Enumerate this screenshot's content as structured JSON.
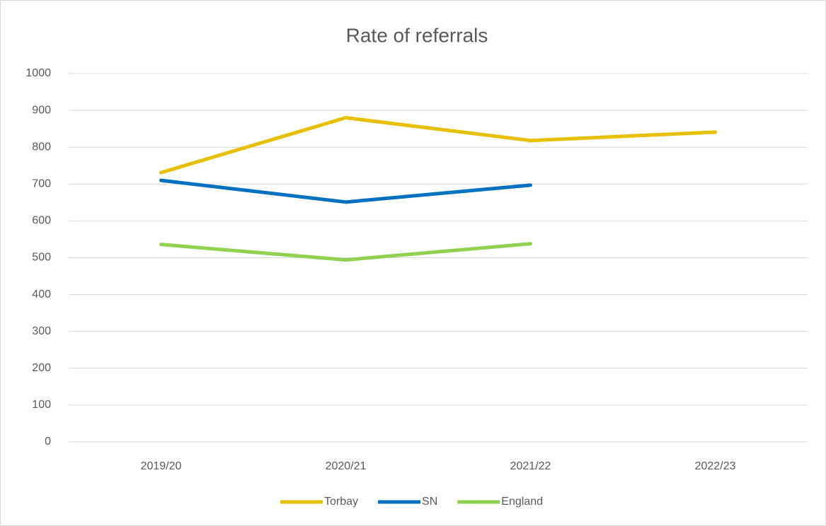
{
  "chart_data": {
    "type": "line",
    "title": "Rate of referrals",
    "categories": [
      "2019/20",
      "2020/21",
      "2021/22",
      "2022/23"
    ],
    "series": [
      {
        "name": "Torbay",
        "color": "#e6bf00",
        "values": [
          731,
          880,
          818,
          841
        ]
      },
      {
        "name": "SN",
        "color": "#0070c0",
        "values": [
          710,
          651,
          697,
          null
        ]
      },
      {
        "name": "England",
        "color": "#92d050",
        "values": [
          536,
          494,
          538,
          null
        ]
      }
    ],
    "ylim": [
      0,
      1000
    ],
    "yticks": [
      0,
      100,
      200,
      300,
      400,
      500,
      600,
      700,
      800,
      900,
      1000
    ],
    "grid": true,
    "legend": "bottom"
  }
}
